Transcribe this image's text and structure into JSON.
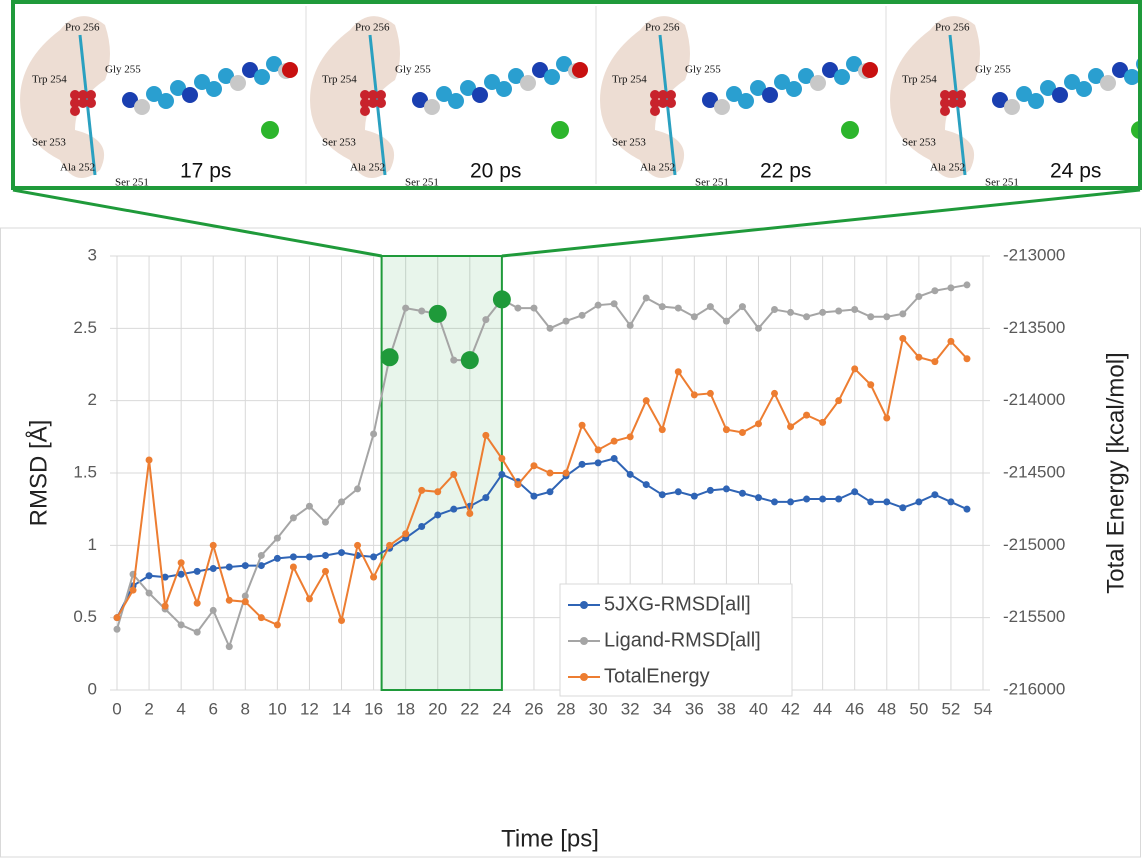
{
  "panels": [
    {
      "time": "17 ps",
      "labels": [
        "Pro 256",
        "Gly 255",
        "Trp 254",
        "Ser 253",
        "Ala 252",
        "Ser 251"
      ]
    },
    {
      "time": "20 ps",
      "labels": [
        "Pro 256",
        "Gly 255",
        "Trp 254",
        "Ser 253",
        "Ala 252",
        "Ser 251"
      ]
    },
    {
      "time": "22 ps",
      "labels": [
        "Pro 256",
        "Gly 255",
        "Trp 254",
        "Ser 253",
        "Ala 252",
        "Ser 251"
      ]
    },
    {
      "time": "24 ps",
      "labels": [
        "Pro 256",
        "Gly 255",
        "Trp 254",
        "Ser 253",
        "Ala 252",
        "Ser 251"
      ]
    }
  ],
  "chart_data": {
    "type": "line",
    "x_label": "Time [ps]",
    "y_label": "RMSD [Å]",
    "y2_label": "Total Energy [kcal/mol]",
    "x": [
      0,
      1,
      2,
      3,
      4,
      5,
      6,
      7,
      8,
      9,
      10,
      11,
      12,
      13,
      14,
      15,
      16,
      17,
      18,
      19,
      20,
      21,
      22,
      23,
      24,
      25,
      26,
      27,
      28,
      29,
      30,
      31,
      32,
      33,
      34,
      35,
      36,
      37,
      38,
      39,
      40,
      41,
      42,
      43,
      44,
      45,
      46,
      47,
      48,
      49,
      50,
      51,
      52,
      53
    ],
    "xlim": [
      0,
      54
    ],
    "xticks": [
      0,
      2,
      4,
      6,
      8,
      10,
      12,
      14,
      16,
      18,
      20,
      22,
      24,
      26,
      28,
      30,
      32,
      34,
      36,
      38,
      40,
      42,
      44,
      46,
      48,
      50,
      52,
      54
    ],
    "ylim": [
      0,
      3
    ],
    "yticks": [
      0,
      0.5,
      1,
      1.5,
      2,
      2.5,
      3
    ],
    "y2lim": [
      -216000,
      -213000
    ],
    "y2ticks": [
      -216000,
      -215500,
      -215000,
      -214500,
      -214000,
      -213500,
      -213000
    ],
    "grid": true,
    "legend": "center-right",
    "series": [
      {
        "name": "5JXG-RMSD[all]",
        "color": "#2f64b5",
        "values": [
          0.5,
          0.72,
          0.79,
          0.78,
          0.8,
          0.82,
          0.84,
          0.85,
          0.86,
          0.86,
          0.91,
          0.92,
          0.92,
          0.93,
          0.95,
          0.93,
          0.92,
          0.98,
          1.05,
          1.13,
          1.21,
          1.25,
          1.27,
          1.33,
          1.49,
          1.44,
          1.34,
          1.37,
          1.48,
          1.56,
          1.57,
          1.6,
          1.49,
          1.42,
          1.35,
          1.37,
          1.34,
          1.38,
          1.39,
          1.36,
          1.33,
          1.3,
          1.3,
          1.32,
          1.32,
          1.32,
          1.37,
          1.3,
          1.3,
          1.26,
          1.3,
          1.35,
          1.3,
          1.25
        ]
      },
      {
        "name": "Ligand-RMSD[all]",
        "color": "#a5a5a5",
        "values": [
          0.42,
          0.8,
          0.67,
          0.56,
          0.45,
          0.4,
          0.55,
          0.3,
          0.65,
          0.93,
          1.05,
          1.19,
          1.27,
          1.16,
          1.3,
          1.39,
          1.77,
          2.3,
          2.64,
          2.62,
          2.6,
          2.28,
          2.28,
          2.56,
          2.7,
          2.64,
          2.64,
          2.5,
          2.55,
          2.59,
          2.66,
          2.67,
          2.52,
          2.71,
          2.65,
          2.64,
          2.58,
          2.65,
          2.55,
          2.65,
          2.5,
          2.63,
          2.61,
          2.58,
          2.61,
          2.62,
          2.63,
          2.58,
          2.58,
          2.6,
          2.72,
          2.76,
          2.78,
          2.8
        ]
      },
      {
        "name": "TotalEnergy",
        "color": "#ed7d31",
        "axis": "y2",
        "values": [
          -215500,
          -215310,
          -214410,
          -215420,
          -215120,
          -215400,
          -215000,
          -215380,
          -215390,
          -215500,
          -215550,
          -215150,
          -215370,
          -215180,
          -215520,
          -215000,
          -215220,
          -215000,
          -214920,
          -214620,
          -214630,
          -214510,
          -214780,
          -214240,
          -214400,
          -214580,
          -214450,
          -214500,
          -214500,
          -214170,
          -214340,
          -214280,
          -214250,
          -214000,
          -214200,
          -213800,
          -213960,
          -213950,
          -214200,
          -214220,
          -214160,
          -213950,
          -214180,
          -214100,
          -214150,
          -214000,
          -213780,
          -213890,
          -214120,
          -213570,
          -213700,
          -213730,
          -213590,
          -213710
        ]
      }
    ],
    "highlight_range": [
      16.5,
      24
    ],
    "highlight_color": "#1f9a3a",
    "highlight_x": [
      17,
      20,
      22,
      24
    ]
  }
}
